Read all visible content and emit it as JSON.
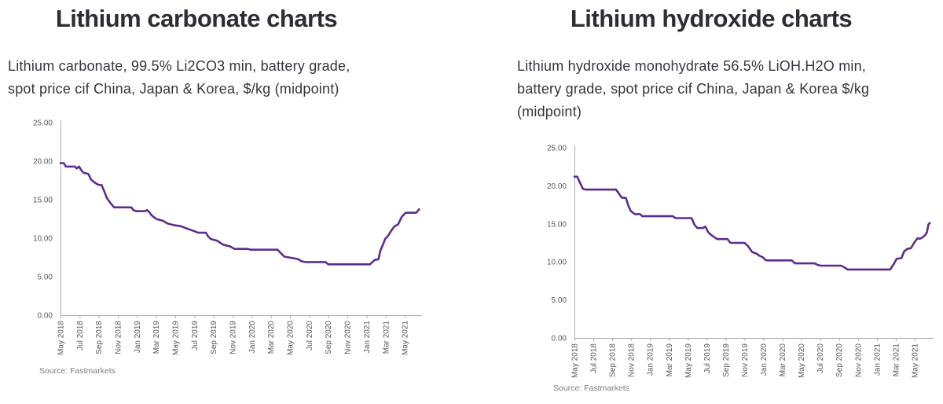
{
  "page": {
    "background": "#FFFFFF"
  },
  "colors": {
    "line": "#5C2D91",
    "axis": "#ADADAD",
    "tick_label": "#595959",
    "source_text": "#7F7F7F",
    "title_text": "#2D2D35",
    "subtitle_text": "#35353D"
  },
  "charts": [
    {
      "title": "Lithium carbonate charts",
      "subtitle_lines": [
        "Lithium carbonate, 99.5% Li2CO3 min, battery grade,",
        "spot price cif China, Japan & Korea, $/kg (midpoint)"
      ],
      "source": "Source: Fastmarkets"
    },
    {
      "title": "Lithium hydroxide charts",
      "subtitle_lines": [
        "Lithium hydroxide monohydrate 56.5% LiOH.H2O min,",
        "battery grade, spot price cif China, Japan & Korea $/kg",
        "(midpoint)"
      ],
      "source": "Source: Fastmarkets"
    }
  ],
  "chart_data": [
    {
      "type": "line",
      "title": "Lithium carbonate charts",
      "xlabel": "",
      "ylabel": "$/kg",
      "ylim": [
        0,
        25
      ],
      "ytick_values": [
        25,
        20,
        15,
        10,
        5,
        0
      ],
      "ytick_labels": [
        "25.00",
        "20.00",
        "15.00",
        "10.00",
        "5.00",
        "0.00"
      ],
      "xtick_labels": [
        "May 2018",
        "Jul 2018",
        "Sep 2018",
        "Nov 2018",
        "Jan 2019",
        "Mar 2019",
        "May 2019",
        "Jul 2019",
        "Sep 2019",
        "Nov 2019",
        "Jan 2020",
        "Mar 2020",
        "May 2020",
        "Jul 2020",
        "Sep 2020",
        "Nov 2020",
        "Jan 2021",
        "Mar 2021",
        "May 2021"
      ],
      "xtick_month_step": 2,
      "x_unit": "months since May 2018",
      "x_domain": [
        0,
        37.8
      ],
      "grid": false,
      "legend": "none",
      "series": [
        {
          "name": "Lithium carbonate 99.5% Li2CO3 min, battery grade, spot price cif China/Japan/Korea ($/kg midpoint)",
          "color": "#5C2D91",
          "points": [
            [
              0,
              19.75
            ],
            [
              0.35,
              19.75
            ],
            [
              0.55,
              19.3
            ],
            [
              1.5,
              19.3
            ],
            [
              1.7,
              19.05
            ],
            [
              1.95,
              19.3
            ],
            [
              2.15,
              18.85
            ],
            [
              2.4,
              18.5
            ],
            [
              2.9,
              18.35
            ],
            [
              3.2,
              17.6
            ],
            [
              3.5,
              17.3
            ],
            [
              3.9,
              16.95
            ],
            [
              4.3,
              16.9
            ],
            [
              4.6,
              16.0
            ],
            [
              4.85,
              15.2
            ],
            [
              5.2,
              14.6
            ],
            [
              5.6,
              14.0
            ],
            [
              7.4,
              14.0
            ],
            [
              7.65,
              13.6
            ],
            [
              8.0,
              13.5
            ],
            [
              8.85,
              13.5
            ],
            [
              9.05,
              13.65
            ],
            [
              9.3,
              13.35
            ],
            [
              9.5,
              13.0
            ],
            [
              10.0,
              12.5
            ],
            [
              10.7,
              12.25
            ],
            [
              11.2,
              11.9
            ],
            [
              11.8,
              11.7
            ],
            [
              12.6,
              11.55
            ],
            [
              13.3,
              11.2
            ],
            [
              14.0,
              10.9
            ],
            [
              14.4,
              10.7
            ],
            [
              15.2,
              10.7
            ],
            [
              15.45,
              10.2
            ],
            [
              15.7,
              9.9
            ],
            [
              16.4,
              9.65
            ],
            [
              17.0,
              9.15
            ],
            [
              17.7,
              8.95
            ],
            [
              18.2,
              8.6
            ],
            [
              19.6,
              8.6
            ],
            [
              19.9,
              8.5
            ],
            [
              22.7,
              8.5
            ],
            [
              23.0,
              8.1
            ],
            [
              23.4,
              7.6
            ],
            [
              24.8,
              7.3
            ],
            [
              25.2,
              7.0
            ],
            [
              25.6,
              6.9
            ],
            [
              27.7,
              6.9
            ],
            [
              28.0,
              6.6
            ],
            [
              32.35,
              6.6
            ],
            [
              32.9,
              7.2
            ],
            [
              33.25,
              7.25
            ],
            [
              33.45,
              8.4
            ],
            [
              33.7,
              9.1
            ],
            [
              33.95,
              9.9
            ],
            [
              34.25,
              10.3
            ],
            [
              34.6,
              11.0
            ],
            [
              34.9,
              11.5
            ],
            [
              35.3,
              11.8
            ],
            [
              35.7,
              12.8
            ],
            [
              36.1,
              13.3
            ],
            [
              37.2,
              13.3
            ],
            [
              37.5,
              13.75
            ]
          ]
        }
      ]
    },
    {
      "type": "line",
      "title": "Lithium hydroxide charts",
      "xlabel": "",
      "ylabel": "$/kg",
      "ylim": [
        0,
        25
      ],
      "ytick_values": [
        25,
        20,
        15,
        10,
        5,
        0
      ],
      "ytick_labels": [
        "25.00",
        "20.00",
        "15.00",
        "10.00",
        "5.00",
        "0.00"
      ],
      "xtick_labels": [
        "May 2018",
        "Jul 2018",
        "Sep 2018",
        "Nov 2018",
        "Jan 2019",
        "Mar 2019",
        "May 2019",
        "Jul 2019",
        "Sep 2019",
        "Nov 2019",
        "Jan 2020",
        "Mar 2020",
        "May 2020",
        "Jul 2020",
        "Sep 2020",
        "Nov 2020",
        "Jan 2021",
        "Mar 2021",
        "May 2021"
      ],
      "xtick_month_step": 2,
      "x_unit": "months since May 2018",
      "x_domain": [
        0,
        38
      ],
      "grid": false,
      "legend": "none",
      "series": [
        {
          "name": "Lithium hydroxide monohydrate 56.5% LiOH.H2O min, battery grade, spot price cif China/Japan/Korea ($/kg midpoint)",
          "color": "#5C2D91",
          "points": [
            [
              0,
              21.2
            ],
            [
              0.3,
              21.2
            ],
            [
              0.55,
              20.5
            ],
            [
              0.9,
              19.6
            ],
            [
              1.2,
              19.5
            ],
            [
              4.4,
              19.5
            ],
            [
              4.7,
              19.0
            ],
            [
              5.0,
              18.45
            ],
            [
              5.45,
              18.4
            ],
            [
              5.7,
              17.4
            ],
            [
              5.95,
              16.7
            ],
            [
              6.2,
              16.45
            ],
            [
              6.45,
              16.25
            ],
            [
              6.9,
              16.3
            ],
            [
              7.2,
              16.0
            ],
            [
              10.4,
              16.0
            ],
            [
              10.7,
              15.75
            ],
            [
              12.4,
              15.75
            ],
            [
              12.7,
              14.9
            ],
            [
              13.0,
              14.45
            ],
            [
              13.6,
              14.45
            ],
            [
              13.85,
              14.65
            ],
            [
              14.15,
              13.9
            ],
            [
              14.5,
              13.5
            ],
            [
              15.1,
              13.0
            ],
            [
              16.2,
              13.0
            ],
            [
              16.5,
              12.5
            ],
            [
              18.0,
              12.5
            ],
            [
              18.35,
              12.1
            ],
            [
              18.8,
              11.3
            ],
            [
              19.25,
              11.1
            ],
            [
              19.6,
              10.8
            ],
            [
              19.95,
              10.6
            ],
            [
              20.2,
              10.25
            ],
            [
              20.5,
              10.2
            ],
            [
              23.0,
              10.2
            ],
            [
              23.35,
              9.8
            ],
            [
              25.4,
              9.8
            ],
            [
              25.75,
              9.6
            ],
            [
              26.1,
              9.5
            ],
            [
              28.2,
              9.5
            ],
            [
              28.55,
              9.3
            ],
            [
              28.9,
              9.0
            ],
            [
              33.4,
              9.0
            ],
            [
              33.8,
              9.75
            ],
            [
              34.1,
              10.4
            ],
            [
              34.6,
              10.5
            ],
            [
              34.9,
              11.4
            ],
            [
              35.2,
              11.7
            ],
            [
              35.6,
              11.8
            ],
            [
              36.0,
              12.6
            ],
            [
              36.3,
              13.1
            ],
            [
              36.55,
              13.05
            ],
            [
              36.8,
              13.2
            ],
            [
              37.1,
              13.5
            ],
            [
              37.3,
              13.9
            ],
            [
              37.45,
              14.9
            ],
            [
              37.6,
              15.1
            ]
          ]
        }
      ]
    }
  ]
}
